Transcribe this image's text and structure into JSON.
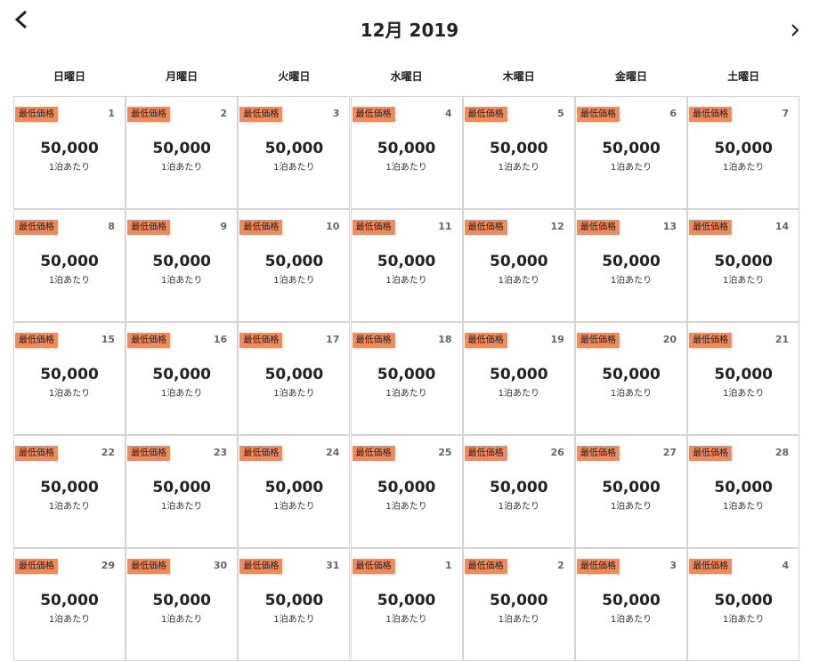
{
  "header": {
    "title": "12月 2019"
  },
  "weekdays": [
    "日曜日",
    "月曜日",
    "火曜日",
    "水曜日",
    "木曜日",
    "金曜日",
    "土曜日"
  ],
  "weeks": [
    [
      {
        "badge": "最低価格",
        "day": 1,
        "price": "50,000",
        "unit": "1泊あたり"
      },
      {
        "badge": "最低価格",
        "day": 2,
        "price": "50,000",
        "unit": "1泊あたり"
      },
      {
        "badge": "最低価格",
        "day": 3,
        "price": "50,000",
        "unit": "1泊あたり"
      },
      {
        "badge": "最低価格",
        "day": 4,
        "price": "50,000",
        "unit": "1泊あたり"
      },
      {
        "badge": "最低価格",
        "day": 5,
        "price": "50,000",
        "unit": "1泊あたり"
      },
      {
        "badge": "最低価格",
        "day": 6,
        "price": "50,000",
        "unit": "1泊あたり"
      },
      {
        "badge": "最低価格",
        "day": 7,
        "price": "50,000",
        "unit": "1泊あたり"
      }
    ],
    [
      {
        "badge": "最低価格",
        "day": 8,
        "price": "50,000",
        "unit": "1泊あたり"
      },
      {
        "badge": "最低価格",
        "day": 9,
        "price": "50,000",
        "unit": "1泊あたり"
      },
      {
        "badge": "最低価格",
        "day": 10,
        "price": "50,000",
        "unit": "1泊あたり"
      },
      {
        "badge": "最低価格",
        "day": 11,
        "price": "50,000",
        "unit": "1泊あたり"
      },
      {
        "badge": "最低価格",
        "day": 12,
        "price": "50,000",
        "unit": "1泊あたり"
      },
      {
        "badge": "最低価格",
        "day": 13,
        "price": "50,000",
        "unit": "1泊あたり"
      },
      {
        "badge": "最低価格",
        "day": 14,
        "price": "50,000",
        "unit": "1泊あたり"
      }
    ],
    [
      {
        "badge": "最低価格",
        "day": 15,
        "price": "50,000",
        "unit": "1泊あたり"
      },
      {
        "badge": "最低価格",
        "day": 16,
        "price": "50,000",
        "unit": "1泊あたり"
      },
      {
        "badge": "最低価格",
        "day": 17,
        "price": "50,000",
        "unit": "1泊あたり"
      },
      {
        "badge": "最低価格",
        "day": 18,
        "price": "50,000",
        "unit": "1泊あたり"
      },
      {
        "badge": "最低価格",
        "day": 19,
        "price": "50,000",
        "unit": "1泊あたり"
      },
      {
        "badge": "最低価格",
        "day": 20,
        "price": "50,000",
        "unit": "1泊あたり"
      },
      {
        "badge": "最低価格",
        "day": 21,
        "price": "50,000",
        "unit": "1泊あたり"
      }
    ],
    [
      {
        "badge": "最低価格",
        "day": 22,
        "price": "50,000",
        "unit": "1泊あたり"
      },
      {
        "badge": "最低価格",
        "day": 23,
        "price": "50,000",
        "unit": "1泊あたり"
      },
      {
        "badge": "最低価格",
        "day": 24,
        "price": "50,000",
        "unit": "1泊あたり"
      },
      {
        "badge": "最低価格",
        "day": 25,
        "price": "50,000",
        "unit": "1泊あたり"
      },
      {
        "badge": "最低価格",
        "day": 26,
        "price": "50,000",
        "unit": "1泊あたり"
      },
      {
        "badge": "最低価格",
        "day": 27,
        "price": "50,000",
        "unit": "1泊あたり"
      },
      {
        "badge": "最低価格",
        "day": 28,
        "price": "50,000",
        "unit": "1泊あたり"
      }
    ],
    [
      {
        "badge": "最低価格",
        "day": 29,
        "price": "50,000",
        "unit": "1泊あたり"
      },
      {
        "badge": "最低価格",
        "day": 30,
        "price": "50,000",
        "unit": "1泊あたり"
      },
      {
        "badge": "最低価格",
        "day": 31,
        "price": "50,000",
        "unit": "1泊あたり"
      },
      {
        "badge": "最低価格",
        "day": 1,
        "price": "50,000",
        "unit": "1泊あたり"
      },
      {
        "badge": "最低価格",
        "day": 2,
        "price": "50,000",
        "unit": "1泊あたり"
      },
      {
        "badge": "最低価格",
        "day": 3,
        "price": "50,000",
        "unit": "1泊あたり"
      },
      {
        "badge": "最低価格",
        "day": 4,
        "price": "50,000",
        "unit": "1泊あたり"
      }
    ]
  ]
}
